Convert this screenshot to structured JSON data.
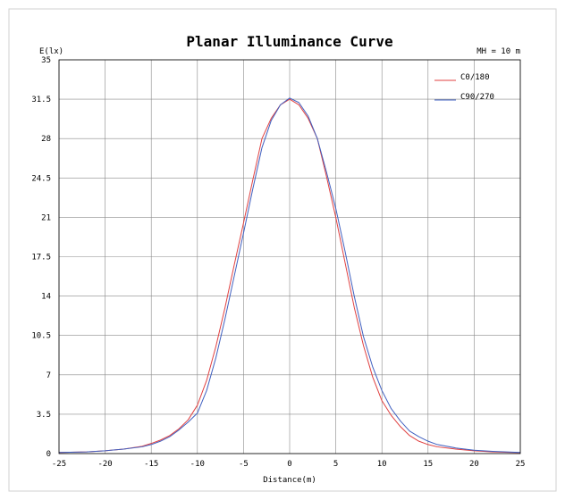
{
  "chart_data": {
    "type": "line",
    "title": "Planar Illuminance Curve",
    "annotation": "MH = 10 m",
    "xlabel": "Distance(m)",
    "ylabel": "E(lx)",
    "xlim": [
      -25,
      25
    ],
    "ylim": [
      0,
      35
    ],
    "xticks": [
      -25,
      -20,
      -15,
      -10,
      -5,
      0,
      5,
      10,
      15,
      20,
      25
    ],
    "yticks": [
      0,
      3.5,
      7,
      10.5,
      14,
      17.5,
      21,
      24.5,
      28,
      31.5,
      35
    ],
    "ytick_labels": [
      "0",
      "3.5",
      "7",
      "10.5",
      "14",
      "17.5",
      "21",
      "24.5",
      "28",
      "31.5",
      "35"
    ],
    "grid": true,
    "legend_position": "top-right",
    "series": [
      {
        "name": "C0/180",
        "color": "#e04040",
        "points": [
          [
            -25,
            0.1
          ],
          [
            -22,
            0.15
          ],
          [
            -20,
            0.25
          ],
          [
            -18,
            0.4
          ],
          [
            -16,
            0.65
          ],
          [
            -15,
            0.9
          ],
          [
            -14,
            1.2
          ],
          [
            -13,
            1.6
          ],
          [
            -12,
            2.2
          ],
          [
            -11,
            3.0
          ],
          [
            -10,
            4.3
          ],
          [
            -9,
            6.5
          ],
          [
            -8,
            9.5
          ],
          [
            -7,
            13.0
          ],
          [
            -6,
            16.8
          ],
          [
            -5,
            20.5
          ],
          [
            -4,
            24.3
          ],
          [
            -3,
            28.0
          ],
          [
            -2,
            29.8
          ],
          [
            -1,
            31.0
          ],
          [
            0,
            31.5
          ],
          [
            1,
            31.0
          ],
          [
            2,
            29.8
          ],
          [
            3,
            28.0
          ],
          [
            4,
            24.6
          ],
          [
            5,
            21.0
          ],
          [
            6,
            17.0
          ],
          [
            7,
            13.0
          ],
          [
            8,
            9.6
          ],
          [
            9,
            6.8
          ],
          [
            10,
            4.7
          ],
          [
            11,
            3.4
          ],
          [
            12,
            2.4
          ],
          [
            13,
            1.6
          ],
          [
            14,
            1.1
          ],
          [
            15,
            0.8
          ],
          [
            16,
            0.6
          ],
          [
            18,
            0.4
          ],
          [
            20,
            0.25
          ],
          [
            22,
            0.15
          ],
          [
            25,
            0.08
          ]
        ]
      },
      {
        "name": "C90/270",
        "color": "#4060c0",
        "points": [
          [
            -25,
            0.1
          ],
          [
            -22,
            0.15
          ],
          [
            -20,
            0.25
          ],
          [
            -18,
            0.4
          ],
          [
            -16,
            0.6
          ],
          [
            -15,
            0.8
          ],
          [
            -14,
            1.1
          ],
          [
            -13,
            1.5
          ],
          [
            -12,
            2.1
          ],
          [
            -11,
            2.8
          ],
          [
            -10,
            3.6
          ],
          [
            -9,
            5.6
          ],
          [
            -8,
            8.5
          ],
          [
            -7,
            12.0
          ],
          [
            -6,
            15.8
          ],
          [
            -5,
            19.6
          ],
          [
            -4,
            23.5
          ],
          [
            -3,
            27.2
          ],
          [
            -2,
            29.6
          ],
          [
            -1,
            31.0
          ],
          [
            0,
            31.6
          ],
          [
            1,
            31.2
          ],
          [
            2,
            30.0
          ],
          [
            3,
            28.0
          ],
          [
            4,
            25.0
          ],
          [
            5,
            21.8
          ],
          [
            6,
            18.0
          ],
          [
            7,
            14.0
          ],
          [
            8,
            10.4
          ],
          [
            9,
            7.7
          ],
          [
            10,
            5.6
          ],
          [
            11,
            4.0
          ],
          [
            12,
            2.9
          ],
          [
            13,
            2.0
          ],
          [
            14,
            1.5
          ],
          [
            15,
            1.1
          ],
          [
            16,
            0.8
          ],
          [
            18,
            0.5
          ],
          [
            20,
            0.3
          ],
          [
            22,
            0.2
          ],
          [
            25,
            0.1
          ]
        ]
      }
    ]
  }
}
